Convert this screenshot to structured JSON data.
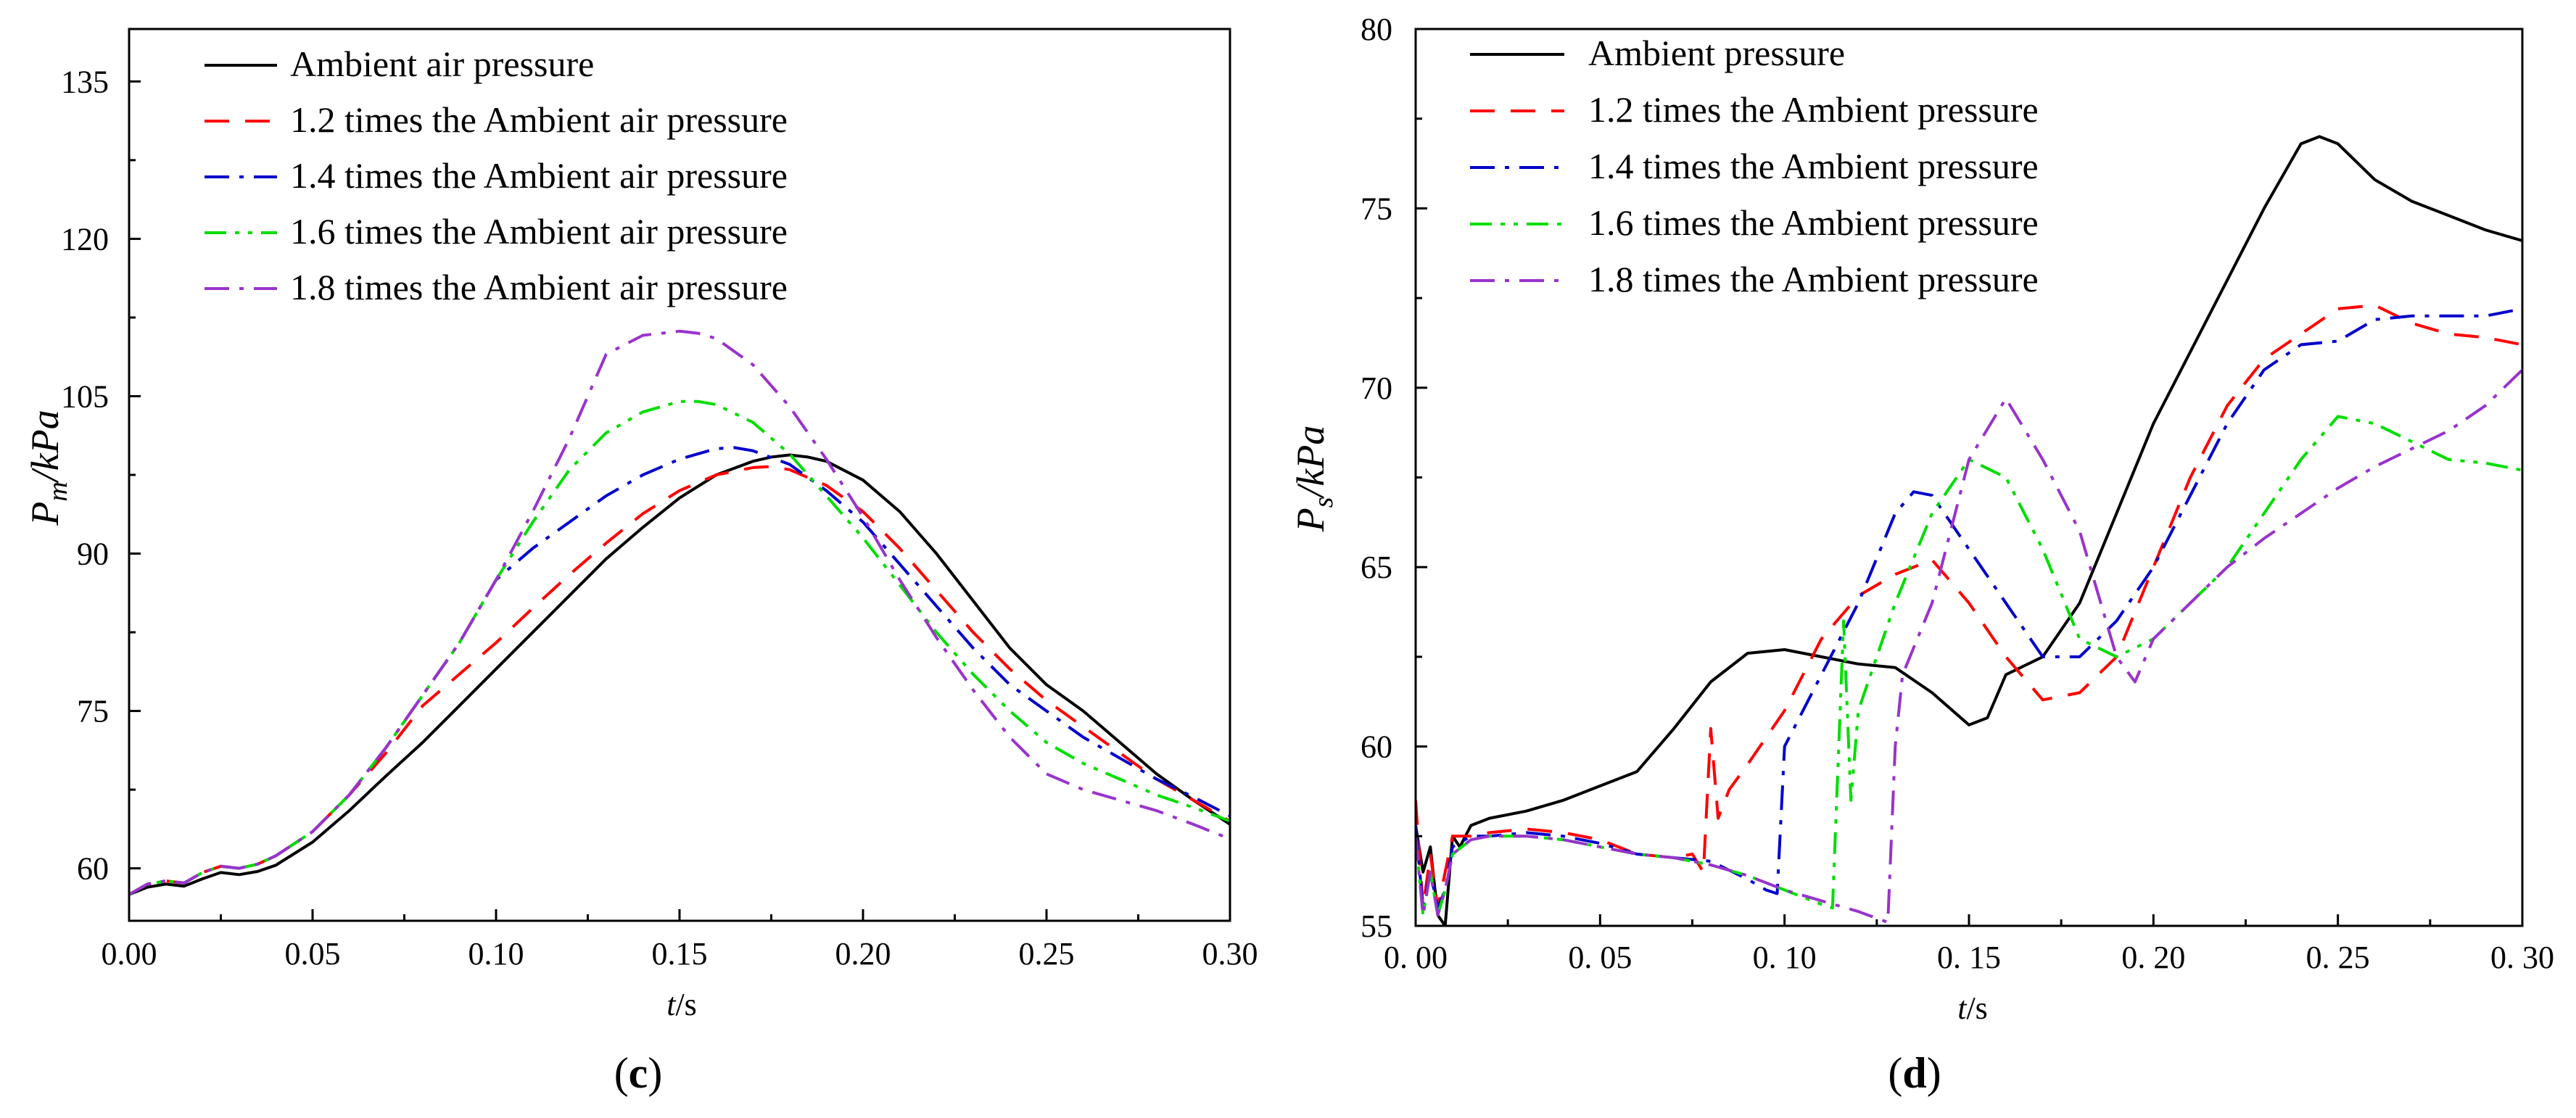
{
  "chart_data": [
    {
      "type": "line",
      "panel_label": "(c)",
      "panel_letter": "c",
      "xlabel": "t/s",
      "xlabel_var": "t",
      "xlabel_unit": "/s",
      "ylabel": "Pm/kPa",
      "ylabel_main": "P",
      "ylabel_sub": "m",
      "ylabel_unit": "/kPa",
      "xlim": [
        0,
        0.3
      ],
      "ylim": [
        55,
        140
      ],
      "xticks": [
        0,
        0.05,
        0.1,
        0.15,
        0.2,
        0.25,
        0.3
      ],
      "xtick_labels": [
        "0.00",
        "0.05",
        "0.10",
        "0.15",
        "0.20",
        "0.25",
        "0.30"
      ],
      "yticks": [
        60,
        75,
        90,
        105,
        120,
        135
      ],
      "ytick_labels": [
        "60",
        "75",
        "90",
        "105",
        "120",
        "135"
      ],
      "legend_position": "top-left",
      "grid": false,
      "series": [
        {
          "name": "Ambient air pressure",
          "color": "#000000",
          "dash": "solid",
          "x": [
            0,
            0.005,
            0.01,
            0.015,
            0.02,
            0.025,
            0.03,
            0.035,
            0.04,
            0.05,
            0.06,
            0.07,
            0.08,
            0.09,
            0.1,
            0.11,
            0.12,
            0.13,
            0.14,
            0.15,
            0.16,
            0.17,
            0.175,
            0.18,
            0.185,
            0.19,
            0.2,
            0.21,
            0.22,
            0.23,
            0.24,
            0.25,
            0.26,
            0.27,
            0.28,
            0.29,
            0.3
          ],
          "y": [
            57.5,
            58.2,
            58.5,
            58.3,
            59.0,
            59.6,
            59.4,
            59.7,
            60.3,
            62.5,
            65.5,
            68.8,
            72.0,
            75.5,
            79.0,
            82.5,
            86.0,
            89.5,
            92.5,
            95.3,
            97.5,
            98.8,
            99.2,
            99.4,
            99.2,
            98.8,
            97.0,
            94.0,
            90.0,
            85.5,
            81.0,
            77.5,
            75.0,
            72.0,
            69.0,
            66.5,
            64.2
          ]
        },
        {
          "name": "1.2 times the Ambient air pressure",
          "color": "#ff0000",
          "dash": "long",
          "x": [
            0,
            0.005,
            0.01,
            0.015,
            0.02,
            0.025,
            0.03,
            0.035,
            0.04,
            0.05,
            0.06,
            0.07,
            0.08,
            0.09,
            0.1,
            0.11,
            0.12,
            0.13,
            0.14,
            0.15,
            0.16,
            0.17,
            0.175,
            0.18,
            0.19,
            0.2,
            0.21,
            0.22,
            0.23,
            0.24,
            0.25,
            0.26,
            0.27,
            0.28,
            0.29,
            0.3
          ],
          "y": [
            57.5,
            58.5,
            58.8,
            58.6,
            59.6,
            60.2,
            60.0,
            60.4,
            61.2,
            63.5,
            67.0,
            71.0,
            75.5,
            78.5,
            81.5,
            84.8,
            88.0,
            91.0,
            93.8,
            96.0,
            97.5,
            98.2,
            98.3,
            98.0,
            96.5,
            94.0,
            90.5,
            86.5,
            82.5,
            79.0,
            76.0,
            73.5,
            71.0,
            68.5,
            66.5,
            64.5
          ]
        },
        {
          "name": "1.4 times the Ambient air pressure",
          "color": "#0000cc",
          "dash": "dashdot",
          "x": [
            0,
            0.005,
            0.01,
            0.015,
            0.02,
            0.025,
            0.03,
            0.035,
            0.04,
            0.05,
            0.06,
            0.07,
            0.08,
            0.09,
            0.1,
            0.11,
            0.12,
            0.13,
            0.14,
            0.15,
            0.16,
            0.165,
            0.17,
            0.18,
            0.19,
            0.2,
            0.21,
            0.22,
            0.23,
            0.24,
            0.25,
            0.26,
            0.27,
            0.28,
            0.29,
            0.3
          ],
          "y": [
            57.5,
            58.5,
            58.8,
            58.6,
            59.6,
            60.2,
            60.0,
            60.4,
            61.2,
            63.5,
            67.0,
            71.5,
            76.5,
            81.5,
            87.5,
            90.5,
            93.0,
            95.5,
            97.5,
            99.0,
            100.0,
            100.1,
            99.8,
            98.5,
            96.0,
            93.0,
            89.0,
            85.0,
            81.0,
            77.5,
            75.0,
            72.5,
            70.5,
            68.5,
            66.8,
            65.0
          ]
        },
        {
          "name": "1.6 times the Ambient air pressure",
          "color": "#00dd00",
          "dash": "dashdotdot",
          "x": [
            0,
            0.005,
            0.01,
            0.015,
            0.02,
            0.025,
            0.03,
            0.035,
            0.04,
            0.05,
            0.06,
            0.07,
            0.08,
            0.09,
            0.1,
            0.11,
            0.12,
            0.13,
            0.14,
            0.15,
            0.155,
            0.16,
            0.17,
            0.18,
            0.19,
            0.2,
            0.21,
            0.22,
            0.23,
            0.24,
            0.25,
            0.26,
            0.27,
            0.28,
            0.29,
            0.3
          ],
          "y": [
            57.5,
            58.5,
            58.8,
            58.6,
            59.6,
            60.2,
            60.0,
            60.4,
            61.2,
            63.5,
            67.0,
            71.5,
            76.5,
            81.5,
            87.5,
            93.0,
            98.0,
            101.5,
            103.5,
            104.5,
            104.5,
            104.2,
            102.5,
            99.5,
            95.5,
            91.5,
            87.0,
            82.5,
            78.5,
            75.0,
            72.0,
            70.0,
            68.5,
            67.0,
            65.8,
            64.5
          ]
        },
        {
          "name": "1.8 times the Ambient air pressure",
          "color": "#9933cc",
          "dash": "dashdot",
          "x": [
            0,
            0.005,
            0.01,
            0.015,
            0.02,
            0.025,
            0.03,
            0.035,
            0.04,
            0.05,
            0.06,
            0.07,
            0.08,
            0.09,
            0.1,
            0.11,
            0.12,
            0.13,
            0.14,
            0.15,
            0.155,
            0.16,
            0.17,
            0.18,
            0.19,
            0.2,
            0.21,
            0.22,
            0.23,
            0.24,
            0.25,
            0.26,
            0.27,
            0.28,
            0.29,
            0.3
          ],
          "y": [
            57.5,
            58.5,
            58.8,
            58.6,
            59.6,
            60.2,
            60.0,
            60.4,
            61.2,
            63.5,
            67.0,
            71.5,
            76.5,
            81.5,
            87.5,
            94.0,
            101.0,
            109.0,
            110.8,
            111.2,
            111.0,
            110.5,
            108.0,
            104.0,
            99.0,
            93.5,
            87.5,
            82.0,
            77.0,
            72.5,
            69.0,
            67.5,
            66.5,
            65.5,
            64.2,
            62.8
          ]
        }
      ]
    },
    {
      "type": "line",
      "panel_label": "(d)",
      "panel_letter": "d",
      "xlabel": "t/s",
      "xlabel_var": "t",
      "xlabel_unit": "/s",
      "ylabel": "Ps/kPa",
      "ylabel_main": "P",
      "ylabel_sub": "s",
      "ylabel_unit": "/kPa",
      "xlim": [
        0,
        0.3
      ],
      "ylim": [
        55,
        80
      ],
      "xticks": [
        0,
        0.05,
        0.1,
        0.15,
        0.2,
        0.25,
        0.3
      ],
      "xtick_labels": [
        "0. 00",
        "0. 05",
        "0. 10",
        "0. 15",
        "0. 20",
        "0. 25",
        "0. 30"
      ],
      "yticks": [
        55,
        60,
        65,
        70,
        75,
        80
      ],
      "ytick_labels": [
        "55",
        "60",
        "65",
        "70",
        "75",
        "80"
      ],
      "legend_position": "top-left",
      "grid": false,
      "series": [
        {
          "name": "Ambient pressure",
          "color": "#000000",
          "dash": "solid",
          "x": [
            0,
            0.002,
            0.004,
            0.006,
            0.008,
            0.01,
            0.012,
            0.015,
            0.02,
            0.03,
            0.04,
            0.05,
            0.06,
            0.07,
            0.08,
            0.09,
            0.1,
            0.11,
            0.12,
            0.13,
            0.14,
            0.15,
            0.155,
            0.16,
            0.17,
            0.18,
            0.19,
            0.2,
            0.21,
            0.22,
            0.23,
            0.24,
            0.245,
            0.25,
            0.26,
            0.27,
            0.28,
            0.29,
            0.3
          ],
          "y": [
            57.8,
            56.5,
            57.2,
            55.3,
            55.0,
            57.5,
            57.2,
            57.8,
            58.0,
            58.2,
            58.5,
            58.9,
            59.3,
            60.5,
            61.8,
            62.6,
            62.7,
            62.5,
            62.3,
            62.2,
            61.5,
            60.6,
            60.8,
            62.0,
            62.5,
            64.0,
            66.5,
            69.0,
            71.0,
            73.0,
            75.0,
            76.8,
            77.0,
            76.8,
            75.8,
            75.2,
            74.8,
            74.4,
            74.1
          ]
        },
        {
          "name": "1.2 times the Ambient pressure",
          "color": "#ff0000",
          "dash": "long",
          "x": [
            0,
            0.002,
            0.004,
            0.006,
            0.008,
            0.01,
            0.015,
            0.02,
            0.03,
            0.04,
            0.05,
            0.06,
            0.07,
            0.075,
            0.078,
            0.08,
            0.082,
            0.085,
            0.09,
            0.1,
            0.11,
            0.12,
            0.13,
            0.14,
            0.15,
            0.16,
            0.17,
            0.18,
            0.19,
            0.2,
            0.21,
            0.22,
            0.23,
            0.24,
            0.25,
            0.26,
            0.27,
            0.28,
            0.29,
            0.3
          ],
          "y": [
            58.5,
            55.5,
            57.0,
            55.5,
            56.5,
            57.5,
            57.5,
            57.6,
            57.7,
            57.6,
            57.4,
            57.0,
            56.9,
            57.0,
            56.5,
            60.5,
            58.0,
            58.8,
            59.5,
            61.0,
            63.0,
            64.2,
            64.8,
            65.2,
            64.0,
            62.5,
            61.3,
            61.5,
            62.5,
            65.0,
            67.5,
            69.5,
            70.8,
            71.5,
            72.2,
            72.3,
            71.8,
            71.5,
            71.4,
            71.2
          ]
        },
        {
          "name": "1.4 times the Ambient pressure",
          "color": "#0000cc",
          "dash": "dashdot",
          "x": [
            0,
            0.002,
            0.004,
            0.006,
            0.008,
            0.01,
            0.015,
            0.02,
            0.03,
            0.04,
            0.05,
            0.06,
            0.07,
            0.08,
            0.09,
            0.095,
            0.098,
            0.1,
            0.105,
            0.11,
            0.12,
            0.13,
            0.135,
            0.14,
            0.15,
            0.16,
            0.17,
            0.18,
            0.19,
            0.2,
            0.21,
            0.22,
            0.23,
            0.24,
            0.25,
            0.26,
            0.27,
            0.28,
            0.29,
            0.3
          ],
          "y": [
            57.8,
            55.5,
            56.5,
            55.5,
            56.0,
            57.2,
            57.5,
            57.5,
            57.6,
            57.5,
            57.3,
            57.0,
            56.9,
            56.8,
            56.3,
            56.0,
            55.9,
            60.0,
            61.0,
            62.0,
            64.0,
            66.5,
            67.1,
            67.0,
            65.5,
            64.0,
            62.5,
            62.5,
            63.5,
            65.0,
            67.0,
            69.0,
            70.5,
            71.2,
            71.3,
            71.9,
            72.0,
            72.0,
            72.0,
            72.2
          ]
        },
        {
          "name": "1.6 times the Ambient pressure",
          "color": "#00dd00",
          "dash": "dashdotdot",
          "x": [
            0,
            0.002,
            0.004,
            0.006,
            0.008,
            0.01,
            0.015,
            0.02,
            0.03,
            0.04,
            0.05,
            0.06,
            0.07,
            0.08,
            0.09,
            0.1,
            0.11,
            0.113,
            0.116,
            0.118,
            0.12,
            0.125,
            0.13,
            0.14,
            0.15,
            0.16,
            0.17,
            0.18,
            0.19,
            0.2,
            0.21,
            0.22,
            0.23,
            0.24,
            0.25,
            0.26,
            0.27,
            0.28,
            0.29,
            0.3
          ],
          "y": [
            57.5,
            55.3,
            56.5,
            55.3,
            56.0,
            57.0,
            57.4,
            57.5,
            57.5,
            57.4,
            57.2,
            57.0,
            56.9,
            56.7,
            56.4,
            56.0,
            55.6,
            55.5,
            63.5,
            58.5,
            61.0,
            62.5,
            64.0,
            66.5,
            68.0,
            67.5,
            65.5,
            63.0,
            62.5,
            63.0,
            64.0,
            65.0,
            66.5,
            68.0,
            69.2,
            69.0,
            68.5,
            68.0,
            67.9,
            67.7
          ]
        },
        {
          "name": "1.8 times the Ambient pressure",
          "color": "#9933cc",
          "dash": "dashdot",
          "x": [
            0,
            0.002,
            0.004,
            0.006,
            0.008,
            0.01,
            0.015,
            0.02,
            0.03,
            0.04,
            0.05,
            0.06,
            0.07,
            0.08,
            0.09,
            0.1,
            0.11,
            0.12,
            0.128,
            0.13,
            0.132,
            0.14,
            0.15,
            0.16,
            0.17,
            0.18,
            0.19,
            0.195,
            0.2,
            0.21,
            0.22,
            0.23,
            0.24,
            0.25,
            0.26,
            0.27,
            0.28,
            0.29,
            0.3
          ],
          "y": [
            57.5,
            55.3,
            56.5,
            55.3,
            56.0,
            57.0,
            57.4,
            57.5,
            57.5,
            57.4,
            57.2,
            57.0,
            56.9,
            56.7,
            56.4,
            56.0,
            55.7,
            55.4,
            55.1,
            60.0,
            62.0,
            64.0,
            68.0,
            69.7,
            68.0,
            66.0,
            62.5,
            61.8,
            63.0,
            64.0,
            65.0,
            65.8,
            66.5,
            67.2,
            67.8,
            68.3,
            68.8,
            69.5,
            70.5
          ]
        }
      ]
    }
  ]
}
